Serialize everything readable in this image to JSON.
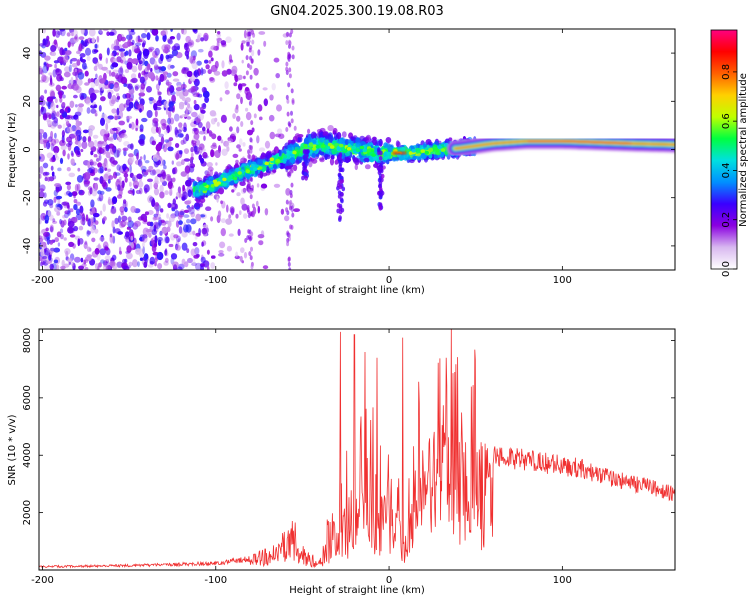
{
  "title": "GN04.2025.300.19.08.R03",
  "chart_data": [
    {
      "type": "heatmap",
      "name": "spectrogram",
      "xlabel": "Height of straight line (km)",
      "ylabel": "Frequency (Hz)",
      "xlim": [
        -202,
        165
      ],
      "ylim": [
        -50,
        50
      ],
      "xticks": [
        -200,
        -100,
        0,
        100
      ],
      "xtick_labels": [
        "-200",
        "-100",
        "0",
        "100"
      ],
      "yticks": [
        -40,
        -20,
        0,
        20,
        40
      ],
      "ytick_labels": [
        "-40",
        "-20",
        "0",
        "20",
        "40"
      ],
      "track": {
        "x": [
          -110,
          -100,
          -90,
          -80,
          -70,
          -60,
          -50,
          -40,
          -30,
          -20,
          -10,
          0,
          10,
          20,
          30,
          40,
          50,
          60,
          80,
          100,
          120,
          140,
          165
        ],
        "y": [
          -17,
          -14,
          -11,
          -8,
          -6,
          -3,
          0,
          2,
          1,
          0,
          -1,
          -1.5,
          -1.5,
          -1,
          0,
          0.5,
          1.5,
          2.5,
          3.5,
          3.5,
          3,
          2.5,
          2
        ]
      },
      "colorbar": {
        "label": "Normalized spectral amplitude",
        "range": [
          0.0,
          0.97
        ],
        "ticks": [
          0.0,
          0.2,
          0.4,
          0.6,
          0.8
        ],
        "tick_labels": [
          "0.0",
          "0.2",
          "0.4",
          "0.6",
          "0.8"
        ],
        "colors": [
          "#ffffff",
          "#d8b8f0",
          "#8a00e0",
          "#3a00ff",
          "#0090ff",
          "#00e0e0",
          "#00ff40",
          "#c0ff00",
          "#ffd000",
          "#ff6000",
          "#ff0000",
          "#ff0080"
        ]
      }
    },
    {
      "type": "line",
      "name": "snr",
      "xlabel": "Height of straight line (km)",
      "ylabel": "SNR (10 * v/v)",
      "xlim": [
        -202,
        165
      ],
      "ylim": [
        0,
        8400
      ],
      "xticks": [
        -200,
        -100,
        0,
        100
      ],
      "xtick_labels": [
        "-200",
        "-100",
        "0",
        "100"
      ],
      "yticks": [
        2000,
        4000,
        6000,
        8000
      ],
      "ytick_labels": [
        "2000",
        "4000",
        "6000",
        "8000"
      ],
      "color": "#f03030",
      "envelope": {
        "x": [
          -202,
          -150,
          -100,
          -80,
          -70,
          -60,
          -55,
          -50,
          -40,
          -38,
          -35,
          -30,
          -25,
          -20,
          -15,
          -10,
          -5,
          0,
          5,
          10,
          12,
          15,
          20,
          25,
          30,
          35,
          40,
          45,
          50,
          60,
          70,
          80,
          90,
          100,
          110,
          120,
          130,
          140,
          150,
          160,
          165
        ],
        "y": [
          150,
          200,
          300,
          500,
          800,
          1400,
          1900,
          900,
          300,
          600,
          1400,
          2000,
          2400,
          3000,
          3500,
          3600,
          3200,
          2800,
          2200,
          600,
          3000,
          3800,
          4300,
          4800,
          5200,
          5200,
          5000,
          4800,
          4600,
          4400,
          4300,
          4200,
          4100,
          4000,
          3900,
          3700,
          3500,
          3300,
          3200,
          3000,
          2900
        ]
      },
      "spikes": [
        {
          "x": -28,
          "y": 8300
        },
        {
          "x": -20,
          "y": 8200
        },
        {
          "x": -14,
          "y": 7600
        },
        {
          "x": -7,
          "y": 7400
        },
        {
          "x": 8,
          "y": 8100
        },
        {
          "x": 33,
          "y": 7400
        },
        {
          "x": 38,
          "y": 6900
        }
      ]
    }
  ]
}
